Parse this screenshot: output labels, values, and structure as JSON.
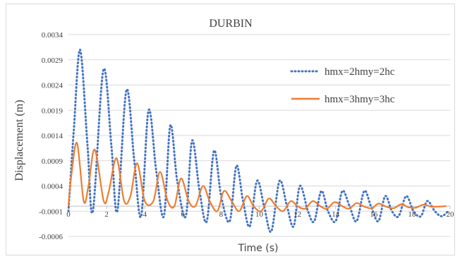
{
  "chart_data": {
    "type": "line",
    "title": "DURBIN",
    "xlabel": "Time (s)",
    "ylabel": "Displacement (m)",
    "xlim": [
      0,
      20
    ],
    "ylim": [
      -0.0006,
      0.0034
    ],
    "x_ticks": [
      "0",
      "2",
      "4",
      "6",
      "8",
      "10",
      "12",
      "14",
      "16",
      "18",
      "20"
    ],
    "y_ticks": [
      "-0.0006",
      "-0.0001",
      "0.0004",
      "0.0009",
      "0.0014",
      "0.0019",
      "0.0024",
      "0.0029",
      "0.0034"
    ],
    "grid": true,
    "legend_position": "top-right",
    "series": [
      {
        "name": "hmx=2hmy=2hc",
        "style": "dotted",
        "color": "#4472c4",
        "x": [
          0,
          0.28,
          0.61,
          1.0,
          1.28,
          1.83,
          2.25,
          2.56,
          3.04,
          3.45,
          3.81,
          4.2,
          4.6,
          5.0,
          5.34,
          5.7,
          6.15,
          6.48,
          6.87,
          7.25,
          7.63,
          8.0,
          8.45,
          8.8,
          9.15,
          9.5,
          9.88,
          10.25,
          10.63,
          11.06,
          11.45,
          11.8,
          12.13,
          12.55,
          12.88,
          13.25,
          13.6,
          14.0,
          14.35,
          14.73,
          15.1,
          15.5,
          15.85,
          16.24,
          16.6,
          16.95,
          17.3,
          17.7,
          18.08,
          18.47,
          18.8,
          19.2,
          19.55,
          19.9
        ],
        "y": [
          -0.0001,
          0.0015,
          0.0031,
          0.0012,
          -0.0001,
          0.0027,
          0.0012,
          -0.0001,
          0.0023,
          0.0009,
          -0.0002,
          0.0019,
          0.0007,
          -0.0002,
          0.0016,
          0.0005,
          -0.0002,
          0.0013,
          0.0003,
          -0.0003,
          0.0011,
          0.0002,
          -0.0003,
          0.0008,
          0.0001,
          -0.0004,
          0.0005,
          0.0,
          -0.0005,
          0.0005,
          0.0,
          -0.0004,
          0.0004,
          -0.0001,
          -0.0003,
          0.0003,
          -0.0001,
          -0.0003,
          0.0003,
          0.0,
          -0.0003,
          0.0003,
          0.0,
          -0.0003,
          0.0002,
          -0.0001,
          -0.0002,
          0.0002,
          -0.0001,
          -0.0002,
          0.0001,
          -0.0001,
          -0.0002,
          -0.0001
        ]
      },
      {
        "name": "hmx=3hmy=3hc",
        "style": "solid",
        "color": "#ed7d31",
        "x": [
          0,
          0.15,
          0.45,
          0.8,
          1.05,
          1.38,
          1.85,
          2.12,
          2.52,
          2.92,
          3.25,
          3.6,
          4.0,
          4.45,
          4.8,
          5.2,
          5.55,
          5.9,
          6.3,
          6.65,
          7.05,
          7.4,
          7.8,
          8.15,
          8.55,
          8.95,
          9.35,
          9.7,
          10.1,
          10.5,
          10.88,
          11.25,
          11.65,
          12.0,
          12.4,
          12.8,
          13.2,
          13.55,
          13.95,
          14.35,
          14.7,
          15.1,
          15.5,
          15.9,
          16.25,
          16.65,
          17.05,
          17.45,
          17.8,
          18.2,
          18.6,
          19.0,
          19.4,
          19.8
        ],
        "y": [
          0.0,
          0.0006,
          0.00125,
          0.0001,
          0.0004,
          0.00112,
          0.0001,
          0.0003,
          0.00095,
          0.0001,
          0.0002,
          0.00085,
          0.0001,
          0.0001,
          0.00068,
          0.0001,
          0.0,
          0.00055,
          0.0001,
          0.0,
          0.0004,
          0.0001,
          -0.0001,
          0.0003,
          0.0001,
          -0.0001,
          0.0002,
          0.0,
          -0.0001,
          0.00015,
          0.0,
          -0.0001,
          0.0001,
          0.0,
          -5e-05,
          0.0001,
          0.0,
          -5e-05,
          8e-05,
          0.0,
          -5e-05,
          6e-05,
          -1e-05,
          -4e-05,
          5e-05,
          -1e-05,
          -4e-05,
          4e-05,
          -2e-05,
          -3e-05,
          3e-05,
          -1e-05,
          -1e-05,
          0.0
        ]
      }
    ]
  }
}
